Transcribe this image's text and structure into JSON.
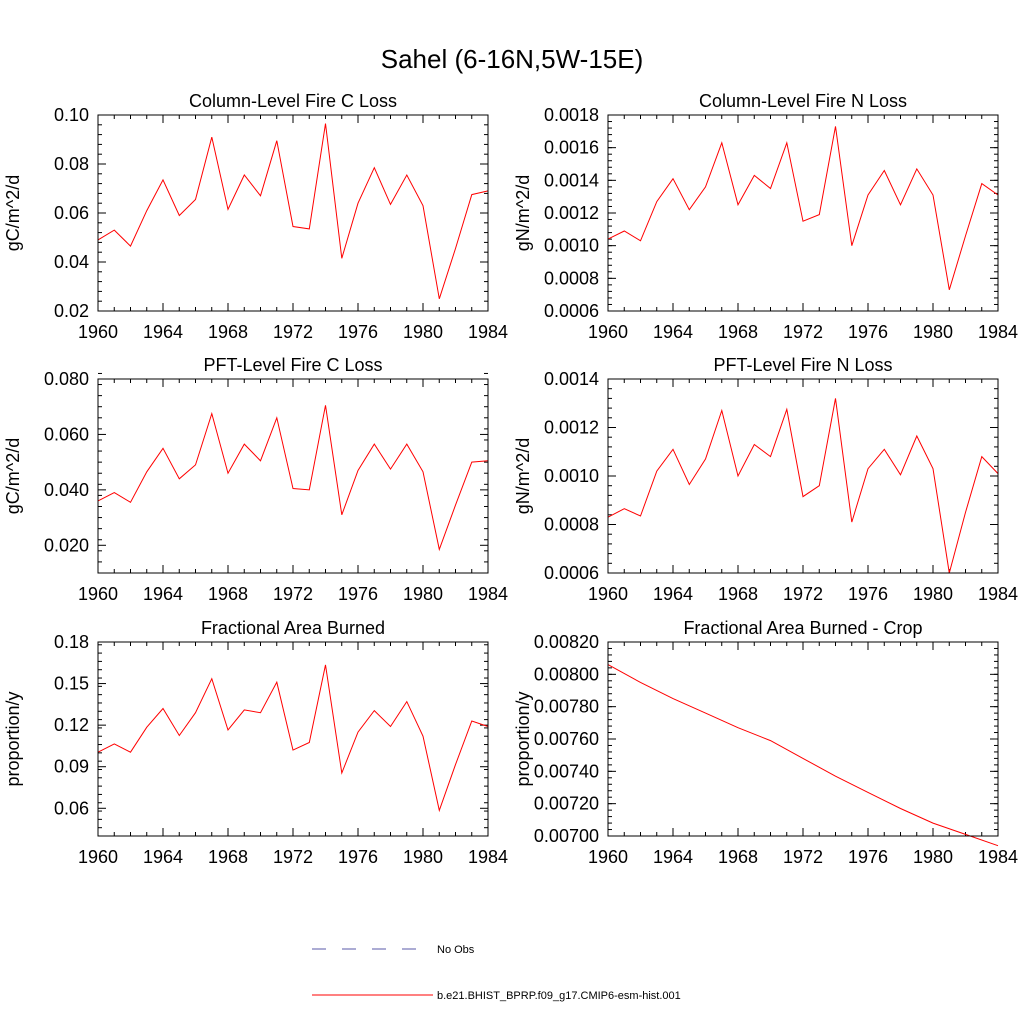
{
  "figure": {
    "title": "Sahel (6-16N,5W-15E)",
    "legend": [
      {
        "label": "No Obs",
        "color": "#5a5aa8",
        "style": "dashed"
      },
      {
        "label": "b.e21.BHIST_BPRP.f09_g17.CMIP6-esm-hist.001",
        "color": "#ff0000",
        "style": "solid"
      }
    ]
  },
  "chart_data": [
    {
      "type": "line",
      "title": "Column-Level Fire C Loss",
      "ylabel": "gC/m^2/d",
      "xlim": [
        1960,
        1984
      ],
      "ylim": [
        0.02,
        0.1
      ],
      "xticks": [
        "1960",
        "1964",
        "1968",
        "1972",
        "1976",
        "1980",
        "1984"
      ],
      "yticks": [
        "0.02",
        "0.04",
        "0.06",
        "0.08",
        "0.10"
      ],
      "x": [
        1960,
        1961,
        1962,
        1963,
        1964,
        1965,
        1966,
        1967,
        1968,
        1969,
        1970,
        1971,
        1972,
        1973,
        1974,
        1975,
        1976,
        1977,
        1978,
        1979,
        1980,
        1981,
        1982,
        1983,
        1984
      ],
      "series": [
        {
          "color": "#ff0000",
          "values": [
            0.049,
            0.053,
            0.0465,
            0.061,
            0.0735,
            0.059,
            0.0655,
            0.091,
            0.0615,
            0.0755,
            0.067,
            0.0895,
            0.0545,
            0.0535,
            0.0965,
            0.0415,
            0.064,
            0.0785,
            0.0635,
            0.0755,
            0.063,
            0.025,
            0.0455,
            0.0675,
            0.069
          ]
        }
      ]
    },
    {
      "type": "line",
      "title": "Column-Level Fire N Loss",
      "ylabel": "gN/m^2/d",
      "xlim": [
        1960,
        1984
      ],
      "ylim": [
        0.0006,
        0.0018
      ],
      "xticks": [
        "1960",
        "1964",
        "1968",
        "1972",
        "1976",
        "1980",
        "1984"
      ],
      "yticks": [
        "0.0006",
        "0.0008",
        "0.0010",
        "0.0012",
        "0.0014",
        "0.0016",
        "0.0018"
      ],
      "x": [
        1960,
        1961,
        1962,
        1963,
        1964,
        1965,
        1966,
        1967,
        1968,
        1969,
        1970,
        1971,
        1972,
        1973,
        1974,
        1975,
        1976,
        1977,
        1978,
        1979,
        1980,
        1981,
        1982,
        1983,
        1984
      ],
      "series": [
        {
          "color": "#ff0000",
          "values": [
            0.00104,
            0.00109,
            0.00103,
            0.00127,
            0.00141,
            0.00122,
            0.00136,
            0.00163,
            0.00125,
            0.00143,
            0.00135,
            0.00163,
            0.00115,
            0.00119,
            0.00173,
            0.001,
            0.00131,
            0.00146,
            0.00125,
            0.00147,
            0.00131,
            0.00073,
            0.00106,
            0.00138,
            0.00131
          ]
        }
      ]
    },
    {
      "type": "line",
      "title": "PFT-Level Fire C Loss",
      "ylabel": "gC/m^2/d",
      "xlim": [
        1960,
        1984
      ],
      "ylim": [
        0.01,
        0.08
      ],
      "xticks": [
        "1960",
        "1964",
        "1968",
        "1972",
        "1976",
        "1980",
        "1984"
      ],
      "yticks": [
        "0.020",
        "0.040",
        "0.060",
        "0.080"
      ],
      "x": [
        1960,
        1961,
        1962,
        1963,
        1964,
        1965,
        1966,
        1967,
        1968,
        1969,
        1970,
        1971,
        1972,
        1973,
        1974,
        1975,
        1976,
        1977,
        1978,
        1979,
        1980,
        1981,
        1982,
        1983,
        1984
      ],
      "series": [
        {
          "color": "#ff0000",
          "values": [
            0.036,
            0.039,
            0.0355,
            0.0465,
            0.055,
            0.044,
            0.049,
            0.0675,
            0.046,
            0.0565,
            0.0505,
            0.066,
            0.0405,
            0.04,
            0.0705,
            0.031,
            0.047,
            0.0565,
            0.0475,
            0.0565,
            0.0465,
            0.0185,
            0.0345,
            0.05,
            0.0505
          ]
        }
      ]
    },
    {
      "type": "line",
      "title": "PFT-Level Fire N Loss",
      "ylabel": "gN/m^2/d",
      "xlim": [
        1960,
        1984
      ],
      "ylim": [
        0.0006,
        0.0014
      ],
      "xticks": [
        "1960",
        "1964",
        "1968",
        "1972",
        "1976",
        "1980",
        "1984"
      ],
      "yticks": [
        "0.0006",
        "0.0008",
        "0.0010",
        "0.0012",
        "0.0014"
      ],
      "x": [
        1960,
        1961,
        1962,
        1963,
        1964,
        1965,
        1966,
        1967,
        1968,
        1969,
        1970,
        1971,
        1972,
        1973,
        1974,
        1975,
        1976,
        1977,
        1978,
        1979,
        1980,
        1981,
        1982,
        1983,
        1984
      ],
      "series": [
        {
          "color": "#ff0000",
          "values": [
            0.00083,
            0.000865,
            0.000835,
            0.00102,
            0.00111,
            0.000965,
            0.00107,
            0.00127,
            0.001,
            0.00113,
            0.00108,
            0.001275,
            0.000915,
            0.00096,
            0.00132,
            0.00081,
            0.00103,
            0.00111,
            0.001005,
            0.001165,
            0.00103,
            0.0006,
            0.00085,
            0.00108,
            0.00101
          ]
        }
      ]
    },
    {
      "type": "line",
      "title": "Fractional Area Burned",
      "ylabel": "proportion/y",
      "xlim": [
        1960,
        1984
      ],
      "ylim": [
        0.04,
        0.18
      ],
      "xticks": [
        "1960",
        "1964",
        "1968",
        "1972",
        "1976",
        "1980",
        "1984"
      ],
      "yticks": [
        "0.06",
        "0.09",
        "0.12",
        "0.15",
        "0.18"
      ],
      "x": [
        1960,
        1961,
        1962,
        1963,
        1964,
        1965,
        1966,
        1967,
        1968,
        1969,
        1970,
        1971,
        1972,
        1973,
        1974,
        1975,
        1976,
        1977,
        1978,
        1979,
        1980,
        1981,
        1982,
        1983,
        1984
      ],
      "series": [
        {
          "color": "#ff0000",
          "values": [
            0.1005,
            0.1065,
            0.1005,
            0.1185,
            0.132,
            0.1125,
            0.129,
            0.1535,
            0.1165,
            0.131,
            0.129,
            0.151,
            0.102,
            0.1075,
            0.1635,
            0.0855,
            0.115,
            0.1305,
            0.119,
            0.137,
            0.112,
            0.0585,
            0.0915,
            0.123,
            0.119
          ]
        }
      ]
    },
    {
      "type": "line",
      "title": "Fractional Area Burned - Crop",
      "ylabel": "proportion/y",
      "xlim": [
        1960,
        1984
      ],
      "ylim": [
        0.007,
        0.0082
      ],
      "xticks": [
        "1960",
        "1964",
        "1968",
        "1972",
        "1976",
        "1980",
        "1984"
      ],
      "yticks": [
        "0.00700",
        "0.00720",
        "0.00740",
        "0.00760",
        "0.00780",
        "0.00800",
        "0.00820"
      ],
      "x": [
        1960,
        1962,
        1964,
        1966,
        1968,
        1970,
        1972,
        1974,
        1976,
        1978,
        1980,
        1982,
        1984
      ],
      "series": [
        {
          "color": "#ff0000",
          "values": [
            0.00806,
            0.00795,
            0.00785,
            0.00776,
            0.00767,
            0.00759,
            0.00748,
            0.00737,
            0.00727,
            0.00717,
            0.00708,
            0.00701,
            0.00694
          ]
        }
      ]
    }
  ]
}
